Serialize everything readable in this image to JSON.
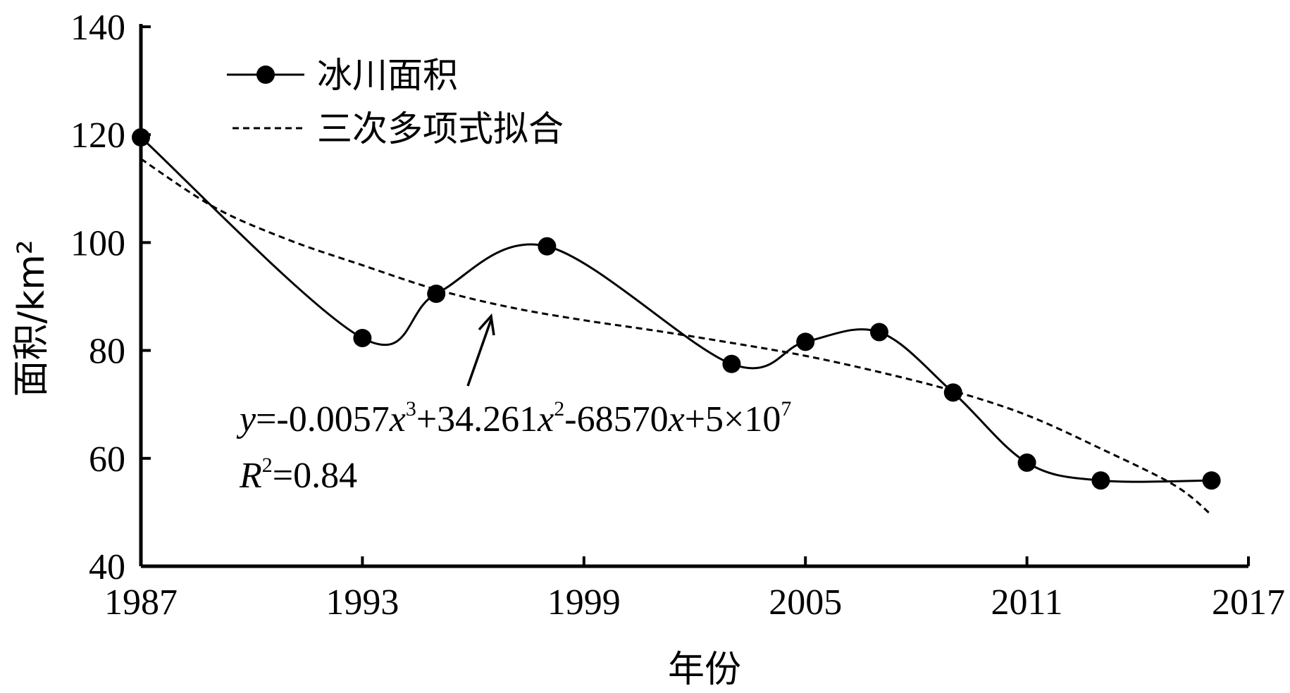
{
  "chart_data": {
    "type": "line",
    "xlabel": "年份",
    "ylabel": "面积/km²",
    "xlim": [
      1987,
      2017
    ],
    "ylim": [
      40,
      140
    ],
    "xticks": [
      1987,
      1993,
      1999,
      2005,
      2011,
      2017
    ],
    "yticks": [
      40,
      60,
      80,
      100,
      120,
      140
    ],
    "grid": false,
    "legend_position": "top-left",
    "series": [
      {
        "name": "冰川面积",
        "style": "solid line with filled circle markers",
        "color": "#000000",
        "x": [
          1987,
          1993,
          1995,
          1998,
          2003,
          2005,
          2007,
          2009,
          2011,
          2013,
          2016
        ],
        "y": [
          119.5,
          82.3,
          90.5,
          99.3,
          77.5,
          81.6,
          83.4,
          72.2,
          59.2,
          55.9,
          55.9
        ]
      },
      {
        "name": "三次多项式拟合",
        "style": "dashed line",
        "color": "#000000",
        "x": [
          1987,
          1989,
          1991,
          1993,
          1995,
          1997,
          1999,
          2001,
          2003,
          2005,
          2007,
          2009,
          2011,
          2013,
          2015,
          2016
        ],
        "y": [
          115.5,
          106.5,
          100.5,
          95.8,
          91.3,
          88.0,
          85.6,
          83.6,
          81.4,
          79.0,
          76.0,
          72.5,
          68.0,
          61.8,
          55.0,
          49.5
        ]
      }
    ],
    "annotations": {
      "equation": {
        "y": "y",
        "part1": "=-0.0057",
        "x1": "x",
        "exp1": "3",
        "part2": "+34.261",
        "x2": "x",
        "exp2": "2",
        "part3": "-68570",
        "x3": "x",
        "part4": "+5×10",
        "exp3": "7"
      },
      "r2": {
        "R": "R",
        "sup": "2",
        "value": "=0.84"
      }
    }
  }
}
